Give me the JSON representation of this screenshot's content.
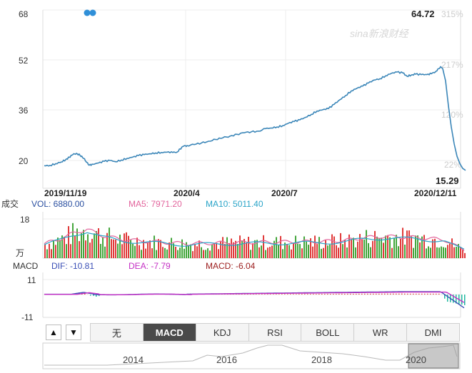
{
  "chart_data": [
    {
      "type": "line",
      "title": "",
      "y_ticks": [
        "68",
        "52",
        "36",
        "20"
      ],
      "y_values": [
        68,
        52,
        36,
        20
      ],
      "ylim": [
        15,
        68
      ],
      "right_ticks": [
        "315%",
        "217%",
        "120%",
        "22%"
      ],
      "x_tick_labels": [
        "2019/11/19",
        "2020/4",
        "2020/7",
        "2020/12/11"
      ],
      "max_label": "64.72",
      "min_label": "15.29",
      "watermark": "sina新浪财经",
      "price_series": [
        [
          0,
          17.5
        ],
        [
          8,
          17.6
        ],
        [
          16,
          18.5
        ],
        [
          24,
          19.3
        ],
        [
          30,
          20.4
        ],
        [
          35,
          21.6
        ],
        [
          40,
          22.8
        ],
        [
          45,
          23.4
        ],
        [
          50,
          22.5
        ],
        [
          55,
          21.0
        ],
        [
          60,
          19.0
        ],
        [
          63,
          17.8
        ],
        [
          68,
          18.2
        ],
        [
          76,
          18.8
        ],
        [
          84,
          19.6
        ],
        [
          92,
          20.0
        ],
        [
          100,
          19.4
        ],
        [
          108,
          20.2
        ],
        [
          116,
          21.0
        ],
        [
          124,
          21.6
        ],
        [
          132,
          22.4
        ],
        [
          140,
          22.8
        ],
        [
          148,
          23.2
        ],
        [
          156,
          23.6
        ],
        [
          164,
          23.8
        ],
        [
          172,
          24.0
        ],
        [
          180,
          23.8
        ],
        [
          186,
          24.0
        ],
        [
          190,
          25.5
        ],
        [
          195,
          26.8
        ],
        [
          200,
          27.1
        ],
        [
          210,
          27.6
        ],
        [
          220,
          28.3
        ],
        [
          230,
          29.2
        ],
        [
          240,
          30.0
        ],
        [
          250,
          30.8
        ],
        [
          260,
          31.6
        ],
        [
          270,
          32.5
        ],
        [
          280,
          33.2
        ],
        [
          290,
          33.7
        ],
        [
          300,
          34.0
        ],
        [
          310,
          35.2
        ],
        [
          318,
          35.5
        ],
        [
          326,
          36.0
        ],
        [
          334,
          36.6
        ],
        [
          342,
          37.8
        ],
        [
          350,
          38.6
        ],
        [
          358,
          39.4
        ],
        [
          366,
          40.6
        ],
        [
          374,
          42.0
        ],
        [
          382,
          43.6
        ],
        [
          390,
          44.2
        ],
        [
          398,
          44.8
        ],
        [
          406,
          46.8
        ],
        [
          414,
          49.0
        ],
        [
          422,
          51.0
        ],
        [
          430,
          53.2
        ],
        [
          438,
          54.5
        ],
        [
          446,
          55.5
        ],
        [
          454,
          57.0
        ],
        [
          462,
          58.4
        ],
        [
          470,
          59.0
        ],
        [
          478,
          60.4
        ],
        [
          486,
          61.6
        ],
        [
          494,
          62.2
        ],
        [
          502,
          61.8
        ],
        [
          508,
          60.2
        ],
        [
          514,
          60.8
        ],
        [
          520,
          61.2
        ],
        [
          528,
          61.0
        ],
        [
          536,
          61.0
        ],
        [
          542,
          61.4
        ],
        [
          548,
          62.4
        ],
        [
          552,
          63.8
        ],
        [
          555,
          64.72
        ],
        [
          558,
          63.8
        ],
        [
          562,
          58.0
        ],
        [
          566,
          46.0
        ],
        [
          570,
          36.0
        ],
        [
          574,
          28.0
        ],
        [
          578,
          22.0
        ],
        [
          582,
          18.5
        ],
        [
          586,
          16.2
        ],
        [
          590,
          15.29
        ]
      ]
    },
    {
      "type": "bar",
      "title": "成交",
      "legend": [
        {
          "name": "VOL",
          "text": "VOL: 6880.00",
          "color": "#2a4fa0"
        },
        {
          "name": "MA5",
          "text": "MA5: 7971.20",
          "color": "#e2649c"
        },
        {
          "name": "MA10",
          "text": "MA10: 5011.40",
          "color": "#2aa4c8"
        }
      ],
      "y_ticks": [
        "18",
        "万"
      ],
      "ylim": [
        0,
        18
      ],
      "bar_up_color": "#e03a3a",
      "bar_down_color": "#44a63c",
      "volume_profile": [
        [
          0,
          7
        ],
        [
          20,
          9
        ],
        [
          40,
          12
        ],
        [
          60,
          14
        ],
        [
          80,
          11
        ],
        [
          110,
          9
        ],
        [
          150,
          8
        ],
        [
          200,
          7
        ],
        [
          260,
          7.5
        ],
        [
          320,
          7.8
        ],
        [
          380,
          8
        ],
        [
          420,
          8.5
        ],
        [
          450,
          10
        ],
        [
          480,
          10.5
        ],
        [
          520,
          10
        ],
        [
          560,
          9
        ],
        [
          575,
          6
        ],
        [
          590,
          4
        ]
      ]
    },
    {
      "type": "line",
      "title": "MACD",
      "legend": [
        {
          "name": "DIF",
          "text": "DIF: -10.81",
          "color": "#3a4fb6"
        },
        {
          "name": "DEA",
          "text": "DEA: -7.79",
          "color": "#c42ec4"
        },
        {
          "name": "MACD",
          "text": "MACD: -6.04",
          "color": "#9b1c1c"
        }
      ],
      "y_ticks": [
        "11",
        "-11"
      ],
      "ylim": [
        -11,
        11
      ]
    },
    {
      "type": "line",
      "title": "navigator",
      "x_tick_labels": [
        "2014",
        "2016",
        "2018",
        "2020"
      ]
    }
  ],
  "tabs": [
    "无",
    "MACD",
    "KDJ",
    "RSI",
    "BOLL",
    "WR",
    "DMI"
  ],
  "active_tab": "MACD",
  "nav_up": "▲",
  "nav_down": "▼",
  "indicator_dot_color": "#2f8fd8",
  "line_color": "#3b86b8"
}
